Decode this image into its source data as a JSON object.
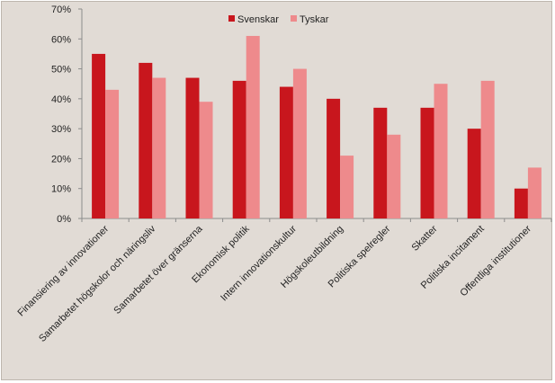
{
  "chart_data": {
    "type": "bar",
    "categories": [
      "Finansiering av innovationer",
      "Samarbetet högskolor och näringsliv",
      "Samarbetet över gränserna",
      "Ekonomisk politik",
      "Intern innovationskultur",
      "Högskoleutbildning",
      "Politiska spelregler",
      "Skatter",
      "Politiska incitament",
      "Offentliga institutioner"
    ],
    "series": [
      {
        "name": "Svenskar",
        "color": "#c8161d",
        "values": [
          55,
          52,
          47,
          46,
          44,
          40,
          37,
          37,
          30,
          10
        ]
      },
      {
        "name": "Tyskar",
        "color": "#ee8a8c",
        "values": [
          43,
          47,
          39,
          61,
          50,
          21,
          28,
          45,
          46,
          17
        ]
      }
    ],
    "ylim": [
      0,
      70
    ],
    "yticks": [
      "0%",
      "10%",
      "20%",
      "30%",
      "40%",
      "50%",
      "60%",
      "70%"
    ],
    "legend_position": "top-center",
    "grid": false
  }
}
